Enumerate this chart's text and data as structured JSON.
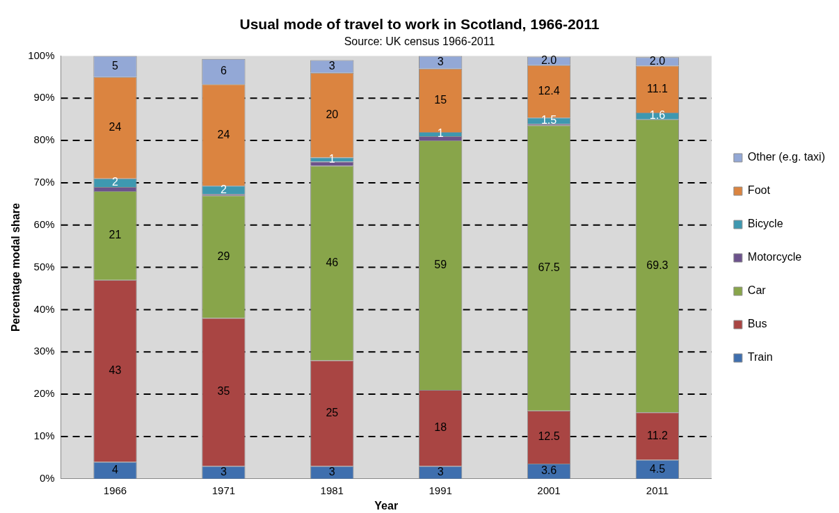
{
  "chart_data": {
    "type": "bar",
    "title": "Usual mode of travel to work in Scotland, 1966-2011",
    "subtitle": "Source: UK census 1966-2011",
    "xlabel": "Year",
    "ylabel": "Percentage modal share",
    "categories": [
      "1966",
      "1971",
      "1981",
      "1991",
      "2001",
      "2011"
    ],
    "stacked": true,
    "grid": "y",
    "legend": "right",
    "ylim": [
      0,
      100
    ],
    "yticks": [
      {
        "value": 0,
        "label": "0%"
      },
      {
        "value": 10,
        "label": "10%"
      },
      {
        "value": 20,
        "label": "20%"
      },
      {
        "value": 30,
        "label": "30%"
      },
      {
        "value": 40,
        "label": "40%"
      },
      {
        "value": 50,
        "label": "50%"
      },
      {
        "value": 60,
        "label": "60%"
      },
      {
        "value": 70,
        "label": "70%"
      },
      {
        "value": 80,
        "label": "80%"
      },
      {
        "value": 90,
        "label": "90%"
      },
      {
        "value": 100,
        "label": "100%"
      }
    ],
    "series": [
      {
        "name": "Train",
        "color": "#3f6fae",
        "values": [
          4,
          3,
          3,
          3,
          3.6,
          4.5
        ],
        "value_labels": [
          "4",
          "3",
          "3",
          "3",
          "3.6",
          "4.5"
        ]
      },
      {
        "name": "Bus",
        "color": "#a94543",
        "values": [
          43,
          35,
          25,
          18,
          12.5,
          11.2
        ],
        "value_labels": [
          "43",
          "35",
          "25",
          "18",
          "12.5",
          "11.2"
        ]
      },
      {
        "name": "Car",
        "color": "#88a54a",
        "values": [
          21,
          29,
          46,
          59,
          67.5,
          69.3
        ],
        "value_labels": [
          "21",
          "29",
          "46",
          "59",
          "67.5",
          "69.3"
        ]
      },
      {
        "name": "Motorcycle",
        "color": "#6c528c",
        "values": [
          1,
          0.3,
          1,
          1,
          0.3,
          null
        ],
        "value_labels": [
          null,
          null,
          null,
          null,
          null,
          null
        ]
      },
      {
        "name": "Bicycle",
        "color": "#3e98b0",
        "values": [
          2,
          2,
          1,
          1,
          1.5,
          1.6
        ],
        "value_labels": [
          "2",
          "2",
          "1",
          "1",
          "1.5",
          "1.6"
        ]
      },
      {
        "name": "Foot",
        "color": "#db8440",
        "values": [
          24,
          24,
          20,
          15,
          12.4,
          11.1
        ],
        "value_labels": [
          "24",
          "24",
          "20",
          "15",
          "12.4",
          "11.1"
        ]
      },
      {
        "name": "Other (e.g. taxi)",
        "color": "#93a8d6",
        "values": [
          5,
          6,
          3,
          3,
          2.0,
          2.0
        ],
        "value_labels": [
          "5",
          "6",
          "3",
          "3",
          "2.0",
          "2.0"
        ]
      }
    ]
  }
}
